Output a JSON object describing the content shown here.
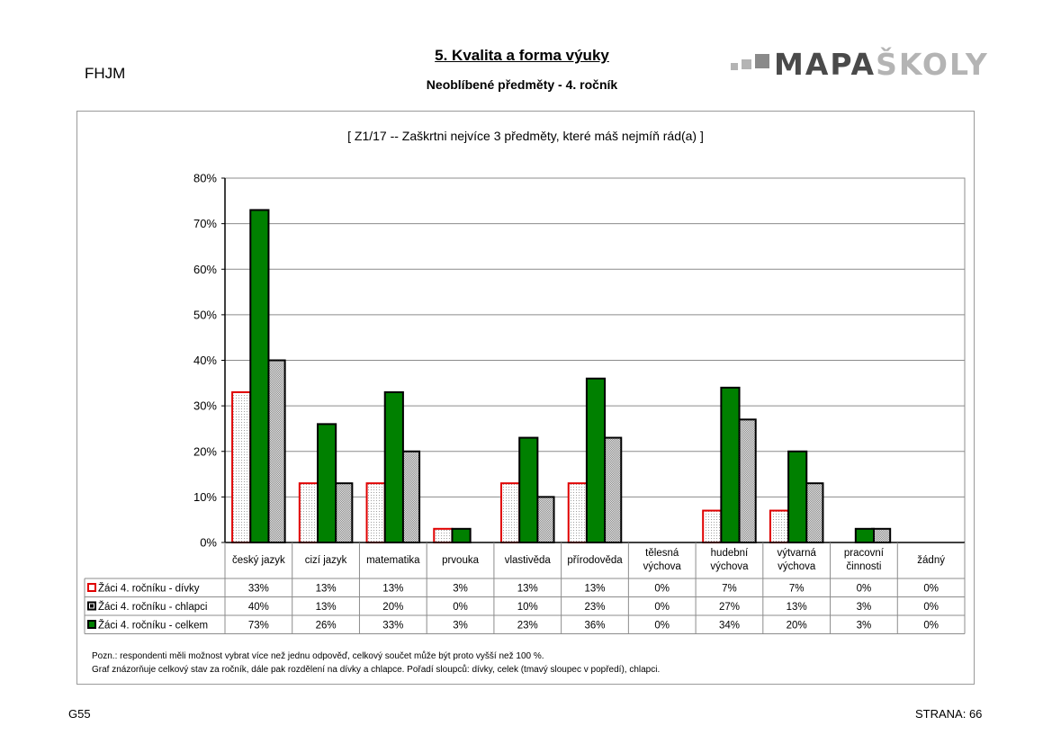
{
  "header": {
    "school_code": "FHJM",
    "title": "5. Kvalita a forma výuky",
    "subtitle": "Neoblíbené předměty - 4. ročník",
    "logo_dark": "MAPA",
    "logo_light": "ŠKOLY"
  },
  "question": "[ Z1/17 -- Zaškrtni nejvíce 3 předměty, které máš nejmíň rád(a) ]",
  "notes": [
    "Pozn.: respondenti měli možnost vybrat  více než jednu odpověď, celkový součet může být proto vyšší než 100 %.",
    "Graf znázorňuje celkový stav za ročník, dále pak rozdělení na dívky a chlapce. Pořadí sloupců: dívky, celek (tmavý sloupec v popředí), chlapci."
  ],
  "footer": {
    "left": "G55",
    "right": "STRANA: 66"
  },
  "chart_data": {
    "type": "bar",
    "ylim": [
      0,
      80
    ],
    "yticks": [
      "0%",
      "10%",
      "20%",
      "30%",
      "40%",
      "50%",
      "60%",
      "70%",
      "80%"
    ],
    "grid": true,
    "categories": [
      [
        "český jazyk"
      ],
      [
        "cizí jazyk"
      ],
      [
        "matematika"
      ],
      [
        "prvouka"
      ],
      [
        "vlastivěda"
      ],
      [
        "přírodověda"
      ],
      [
        "tělesná",
        "výchova"
      ],
      [
        "hudební",
        "výchova"
      ],
      [
        "výtvarná",
        "výchova"
      ],
      [
        "pracovní",
        "činnosti"
      ],
      [
        "žádný"
      ]
    ],
    "series": [
      {
        "name": "Žáci 4. ročníku - dívky",
        "key": "divky",
        "color": "#ffffff",
        "border": "#e00000",
        "values": [
          33,
          13,
          13,
          3,
          13,
          13,
          0,
          7,
          7,
          0,
          0
        ],
        "labels": [
          "33%",
          "13%",
          "13%",
          "3%",
          "13%",
          "13%",
          "0%",
          "7%",
          "7%",
          "0%",
          "0%"
        ]
      },
      {
        "name": "Žáci 4. ročníku - chlapci",
        "key": "chlapci",
        "color": "#d8d8d8",
        "border": "#000000",
        "values": [
          40,
          13,
          20,
          0,
          10,
          23,
          0,
          27,
          13,
          3,
          0
        ],
        "labels": [
          "40%",
          "13%",
          "20%",
          "0%",
          "10%",
          "23%",
          "0%",
          "27%",
          "13%",
          "3%",
          "0%"
        ]
      },
      {
        "name": "Žáci 4. ročníku - celkem",
        "key": "celkem",
        "color": "#008000",
        "border": "#000000",
        "values": [
          73,
          26,
          33,
          3,
          23,
          36,
          0,
          34,
          20,
          3,
          0
        ],
        "labels": [
          "73%",
          "26%",
          "33%",
          "3%",
          "23%",
          "36%",
          "0%",
          "34%",
          "20%",
          "3%",
          "0%"
        ]
      }
    ],
    "legend": "data-table-left"
  }
}
